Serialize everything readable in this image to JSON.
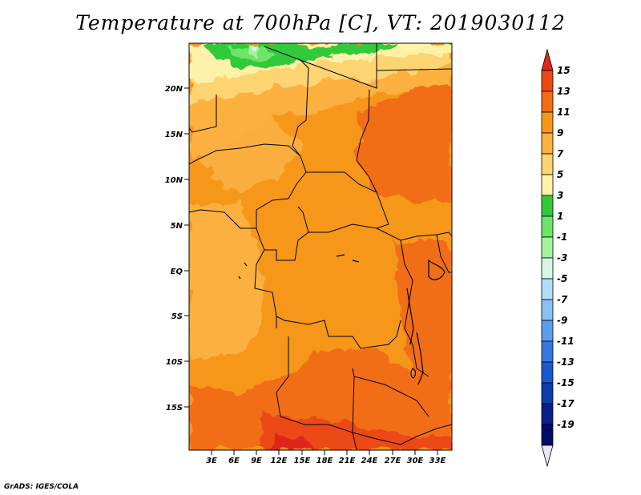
{
  "title": "Temperature at 700hPa [C], VT: 2019030112",
  "credit": "GrADS: IGES/COLA",
  "map": {
    "lat_labels": [
      "20N",
      "15N",
      "10N",
      "5N",
      "EQ",
      "5S",
      "10S",
      "15S"
    ],
    "lon_labels": [
      "3E",
      "6E",
      "9E",
      "12E",
      "15E",
      "18E",
      "21E",
      "24E",
      "27E",
      "30E",
      "33E"
    ]
  },
  "colorbar": {
    "labels": [
      "15",
      "13",
      "11",
      "9",
      "7",
      "5",
      "3",
      "1",
      "-1",
      "-3",
      "-5",
      "-7",
      "-9",
      "-11",
      "-13",
      "-15",
      "-17",
      "-19"
    ],
    "colors": [
      "#e0281a",
      "#ec4a17",
      "#f26e13",
      "#f7971a",
      "#fbb040",
      "#fdd472",
      "#fff2a8",
      "#33c93a",
      "#6ee46a",
      "#a3f3a0",
      "#d6f7e8",
      "#b3ddf7",
      "#88c2f3",
      "#5c9eec",
      "#3778e1",
      "#1b58cc",
      "#0c3da8",
      "#08208a",
      "#050a68",
      "#e6e6f8"
    ]
  }
}
